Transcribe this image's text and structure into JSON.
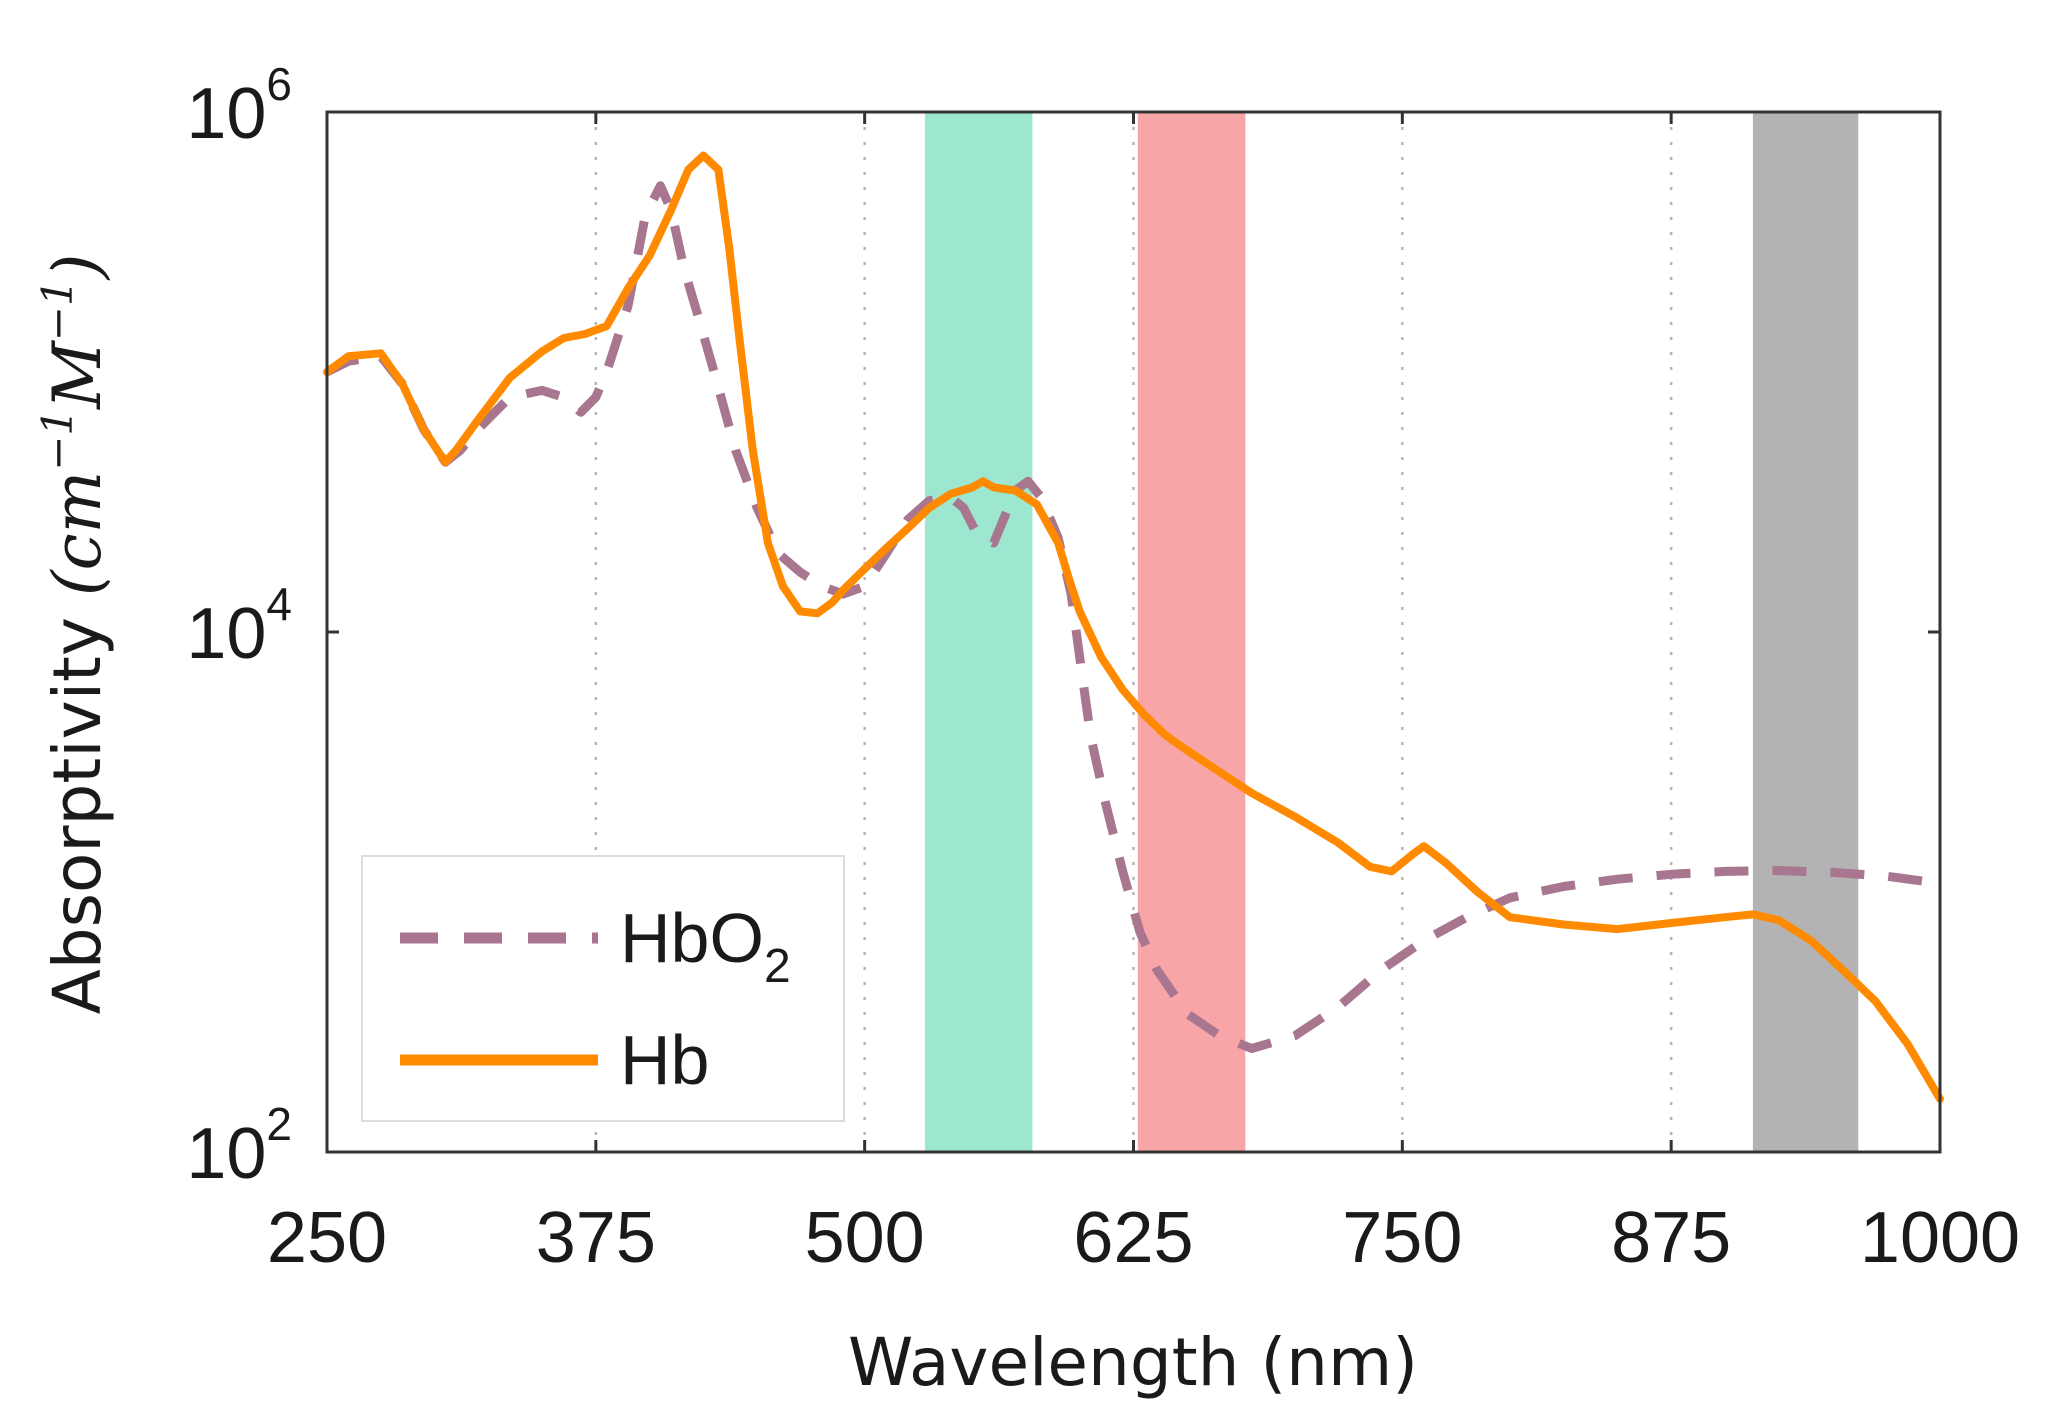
{
  "chart_data": {
    "type": "line",
    "title": "",
    "xlabel": "Wavelength (nm)",
    "ylabel": {
      "prefix": "Absorptivity ",
      "math": "(cm",
      "exp1": "−1",
      "mid": "M",
      "exp2": "−1",
      "end": ")"
    },
    "xlim": [
      250,
      1000
    ],
    "ylim": [
      100,
      1000000
    ],
    "yscale": "log",
    "xticks": [
      250,
      375,
      500,
      625,
      750,
      875,
      1000
    ],
    "xtick_labels": [
      "250",
      "375",
      "500",
      "625",
      "750",
      "875",
      "1000"
    ],
    "yticks": [
      {
        "value": 100,
        "base": "10",
        "exp": "2"
      },
      {
        "value": 10000,
        "base": "10",
        "exp": "4"
      },
      {
        "value": 1000000,
        "base": "10",
        "exp": "6"
      }
    ],
    "grid": "x-dotted",
    "bands": [
      {
        "name": "green-band",
        "x0": 528,
        "x1": 578,
        "color": "#9de6cf"
      },
      {
        "name": "red-band",
        "x0": 627,
        "x1": 677,
        "color": "#f8a5a8"
      },
      {
        "name": "gray-band",
        "x0": 913,
        "x1": 962,
        "color": "#b3b3b3"
      }
    ],
    "series": [
      {
        "name": "HbO2",
        "legend_base": "HbO",
        "legend_sub": "2",
        "style": "dashed",
        "color": "#a8768f",
        "x": [
          250,
          260,
          275,
          285,
          295,
          305,
          312,
          320,
          335,
          350,
          360,
          368,
          375,
          380,
          390,
          398,
          405,
          410,
          416,
          422,
          430,
          440,
          450,
          460,
          470,
          480,
          490,
          500,
          510,
          520,
          530,
          540,
          546,
          552,
          560,
          566,
          570,
          576,
          582,
          590,
          596,
          600,
          605,
          612,
          620,
          628,
          636,
          650,
          665,
          680,
          700,
          720,
          740,
          760,
          780,
          800,
          825,
          850,
          875,
          900,
          925,
          950,
          975,
          1000
        ],
        "y": [
          100000,
          110000,
          115000,
          90000,
          60000,
          45000,
          50000,
          60000,
          80000,
          85000,
          80000,
          70000,
          80000,
          100000,
          180000,
          400000,
          520000,
          420000,
          250000,
          170000,
          100000,
          50000,
          30000,
          20000,
          17000,
          15000,
          14000,
          15000,
          20000,
          27000,
          32000,
          33000,
          30000,
          24000,
          22000,
          29000,
          35000,
          38000,
          33000,
          23000,
          14000,
          8000,
          4000,
          2200,
          1200,
          700,
          500,
          340,
          280,
          250,
          280,
          360,
          500,
          650,
          800,
          950,
          1050,
          1120,
          1170,
          1200,
          1210,
          1190,
          1150,
          1080
        ]
      },
      {
        "name": "Hb",
        "legend_base": "Hb",
        "legend_sub": "",
        "style": "solid",
        "color": "#ff8a00",
        "x": [
          250,
          260,
          275,
          285,
          295,
          305,
          310,
          320,
          335,
          350,
          360,
          370,
          375,
          380,
          390,
          400,
          410,
          418,
          425,
          432,
          437,
          442,
          448,
          455,
          462,
          470,
          478,
          485,
          490,
          500,
          510,
          520,
          530,
          540,
          550,
          555,
          560,
          570,
          580,
          590,
          595,
          600,
          610,
          620,
          630,
          640,
          650,
          665,
          680,
          700,
          720,
          735,
          745,
          755,
          760,
          770,
          785,
          800,
          825,
          850,
          875,
          900,
          913,
          925,
          940,
          955,
          970,
          985,
          1000
        ],
        "y": [
          100000,
          115000,
          118000,
          90000,
          60000,
          45000,
          50000,
          65000,
          95000,
          120000,
          135000,
          140000,
          145000,
          150000,
          210000,
          280000,
          420000,
          600000,
          680000,
          600000,
          300000,
          130000,
          50000,
          22000,
          15000,
          12000,
          11800,
          13000,
          14500,
          17500,
          21000,
          25000,
          30000,
          34000,
          36000,
          38000,
          36000,
          35000,
          31000,
          22000,
          16000,
          12000,
          8000,
          6000,
          4800,
          4000,
          3500,
          2900,
          2400,
          1950,
          1550,
          1250,
          1200,
          1400,
          1500,
          1300,
          1000,
          800,
          750,
          720,
          760,
          800,
          820,
          780,
          650,
          500,
          380,
          260,
          160
        ]
      }
    ]
  }
}
